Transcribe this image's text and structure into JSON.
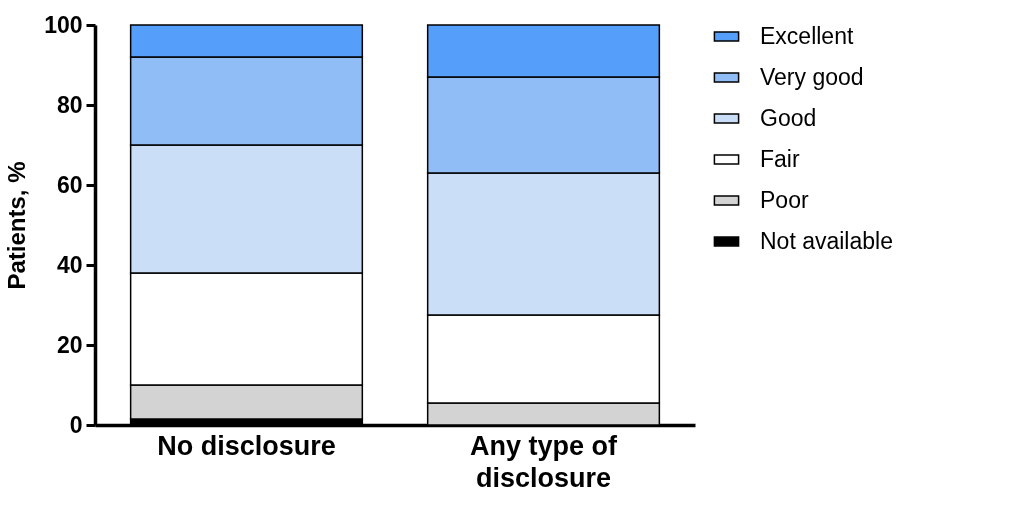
{
  "chart_data": {
    "type": "bar",
    "stacked": true,
    "ylabel": "Patients, %",
    "categories": [
      "No disclosure",
      "Any type of disclosure"
    ],
    "ylim": [
      0,
      100
    ],
    "yticks": [
      0,
      20,
      40,
      60,
      80,
      100
    ],
    "grid": false,
    "legend": "right",
    "series": [
      {
        "name": "Not available",
        "color": "#000000",
        "values": [
          1.5,
          0
        ]
      },
      {
        "name": "Poor",
        "color": "#d3d3d3",
        "values": [
          8.5,
          5.5
        ]
      },
      {
        "name": "Fair",
        "color": "#ffffff",
        "values": [
          28,
          22
        ]
      },
      {
        "name": "Good",
        "color": "#cadff7",
        "values": [
          32,
          35.5
        ]
      },
      {
        "name": "Very good",
        "color": "#91bdf7",
        "values": [
          22,
          24
        ]
      },
      {
        "name": "Excellent",
        "color": "#559ffb",
        "values": [
          8,
          13
        ]
      }
    ]
  }
}
